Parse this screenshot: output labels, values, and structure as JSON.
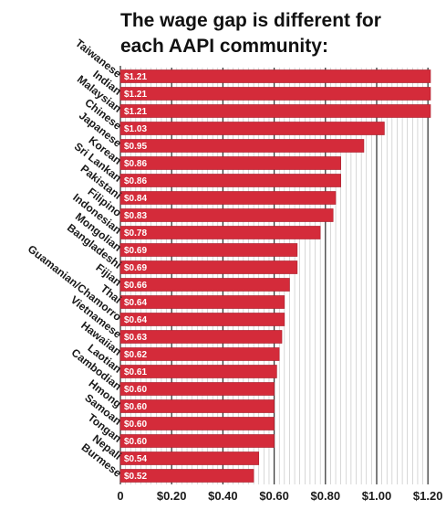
{
  "chart_data": {
    "type": "bar",
    "orientation": "horizontal",
    "title": "The wage gap is different for each AAPI community:",
    "title_lines": [
      "The wage gap is different for",
      "each AAPI community:"
    ],
    "categories": [
      "Taiwanese",
      "Indian",
      "Malaysian",
      "Chinese",
      "Japanese",
      "Korean",
      "Sri Lankan",
      "Pakistani",
      "Filipino",
      "Indonesian",
      "Mongolian",
      "Bangladeshi",
      "Fijian",
      "Thai",
      "Guamanian/Chamorro",
      "Vietnamese",
      "Hawaiian",
      "Laotian",
      "Cambodian",
      "Hmong",
      "Samoan",
      "Tongan",
      "Nepali",
      "Burmese"
    ],
    "values": [
      1.21,
      1.21,
      1.21,
      1.03,
      0.95,
      0.86,
      0.86,
      0.84,
      0.83,
      0.78,
      0.69,
      0.69,
      0.66,
      0.64,
      0.64,
      0.63,
      0.62,
      0.61,
      0.6,
      0.6,
      0.6,
      0.6,
      0.54,
      0.52
    ],
    "value_labels": [
      "$1.21",
      "$1.21",
      "$1.21",
      "$1.03",
      "$0.95",
      "$0.86",
      "$0.86",
      "$0.84",
      "$0.83",
      "$0.78",
      "$0.69",
      "$0.69",
      "$0.66",
      "$0.64",
      "$0.64",
      "$0.63",
      "$0.62",
      "$0.61",
      "$0.60",
      "$0.60",
      "$0.60",
      "$0.60",
      "$0.54",
      "$0.52"
    ],
    "xlim": [
      0,
      1.21
    ],
    "xticks": [
      0,
      0.2,
      0.4,
      0.6,
      0.8,
      1.0,
      1.2
    ],
    "xtick_labels": [
      "0",
      "$0.20",
      "$0.40",
      "$0.60",
      "$0.80",
      "$1.00",
      "$1.20"
    ],
    "xlabel": "",
    "ylabel": "",
    "grid": true,
    "legend": "none",
    "colors": {
      "bar": "#d42b3a",
      "bar_stroke": "#a81f2c",
      "major_grid": "#3a3a3a",
      "minor_grid": "#bdbdbd",
      "text": "#1a1a1a"
    }
  }
}
